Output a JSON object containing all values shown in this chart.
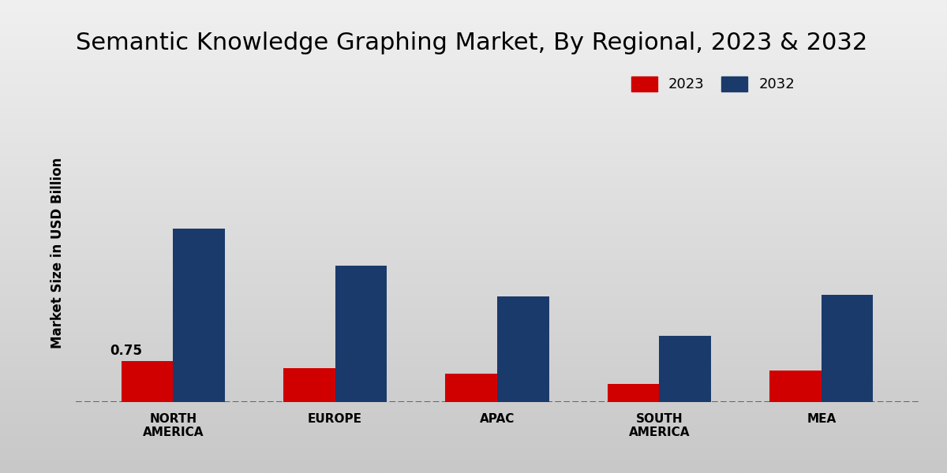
{
  "title": "Semantic Knowledge Graphing Market, By Regional, 2023 & 2032",
  "ylabel": "Market Size in USD Billion",
  "categories": [
    "NORTH\nAMERICA",
    "EUROPE",
    "APAC",
    "SOUTH\nAMERICA",
    "MEA"
  ],
  "values_2023": [
    0.75,
    0.63,
    0.53,
    0.33,
    0.58
  ],
  "values_2032": [
    3.2,
    2.52,
    1.95,
    1.22,
    1.98
  ],
  "color_2023": "#d00000",
  "color_2032": "#1a3a6b",
  "bar_width": 0.32,
  "annotation_value": "0.75",
  "background_top": "#f0f0f0",
  "background_bottom": "#c8c8c8",
  "title_fontsize": 22,
  "label_fontsize": 12,
  "tick_fontsize": 11,
  "legend_fontsize": 13,
  "ylim": [
    0,
    5.5
  ],
  "dashed_line_y": 0.0,
  "legend_labels": [
    "2023",
    "2032"
  ],
  "figsize": [
    12,
    6
  ]
}
